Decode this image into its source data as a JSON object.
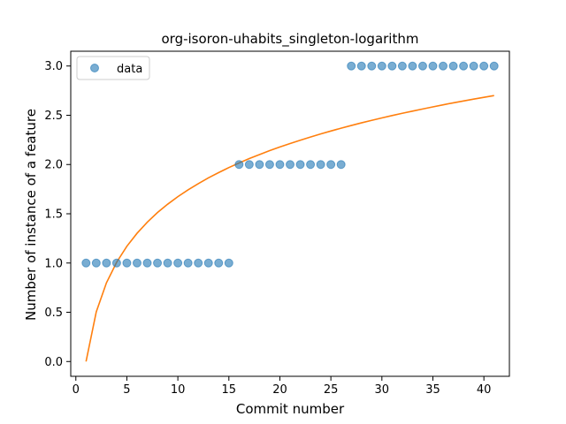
{
  "chart_data": {
    "type": "scatter",
    "title": "org-isoron-uhabits_singleton-logarithm",
    "xlabel": "Commit number",
    "ylabel": "Number of instance of a feature",
    "xlim": [
      -0.5,
      42.5
    ],
    "ylim": [
      -0.15,
      3.15
    ],
    "xticks": [
      0,
      5,
      10,
      15,
      20,
      25,
      30,
      35,
      40
    ],
    "yticks": [
      0.0,
      0.5,
      1.0,
      1.5,
      2.0,
      2.5,
      3.0
    ],
    "xtick_labels": [
      "0",
      "5",
      "10",
      "15",
      "20",
      "25",
      "30",
      "35",
      "40"
    ],
    "ytick_labels": [
      "0.0",
      "0.5",
      "1.0",
      "1.5",
      "2.0",
      "2.5",
      "3.0"
    ],
    "grid": false,
    "legend": {
      "placement": "top-left",
      "entries": [
        "data"
      ]
    },
    "series": [
      {
        "name": "data",
        "kind": "scatter",
        "color": "#1f77b4",
        "x": [
          1,
          2,
          3,
          4,
          5,
          6,
          7,
          8,
          9,
          10,
          11,
          12,
          13,
          14,
          15,
          16,
          17,
          18,
          19,
          20,
          21,
          22,
          23,
          24,
          25,
          26,
          27,
          28,
          29,
          30,
          31,
          32,
          33,
          34,
          35,
          36,
          37,
          38,
          39,
          40,
          41
        ],
        "y": [
          1,
          1,
          1,
          1,
          1,
          1,
          1,
          1,
          1,
          1,
          1,
          1,
          1,
          1,
          1,
          2,
          2,
          2,
          2,
          2,
          2,
          2,
          2,
          2,
          2,
          2,
          3,
          3,
          3,
          3,
          3,
          3,
          3,
          3,
          3,
          3,
          3,
          3,
          3,
          3,
          3
        ]
      },
      {
        "kind": "line",
        "color": "#ff7f0e",
        "x": [
          1,
          2,
          3,
          4,
          5,
          6,
          7,
          8,
          9,
          10,
          11,
          12,
          13,
          14,
          15,
          16,
          17,
          18,
          19,
          20,
          21,
          22,
          23,
          24,
          25,
          26,
          27,
          28,
          29,
          30,
          31,
          32,
          33,
          34,
          35,
          36,
          37,
          38,
          39,
          40,
          41
        ],
        "y": [
          0.0,
          0.504,
          0.799,
          1.008,
          1.17,
          1.302,
          1.414,
          1.512,
          1.597,
          1.674,
          1.743,
          1.806,
          1.865,
          1.918,
          1.969,
          2.016,
          2.06,
          2.101,
          2.141,
          2.178,
          2.213,
          2.247,
          2.279,
          2.31,
          2.34,
          2.369,
          2.396,
          2.423,
          2.448,
          2.473,
          2.497,
          2.52,
          2.542,
          2.564,
          2.585,
          2.606,
          2.626,
          2.645,
          2.664,
          2.682,
          2.7
        ]
      }
    ]
  }
}
